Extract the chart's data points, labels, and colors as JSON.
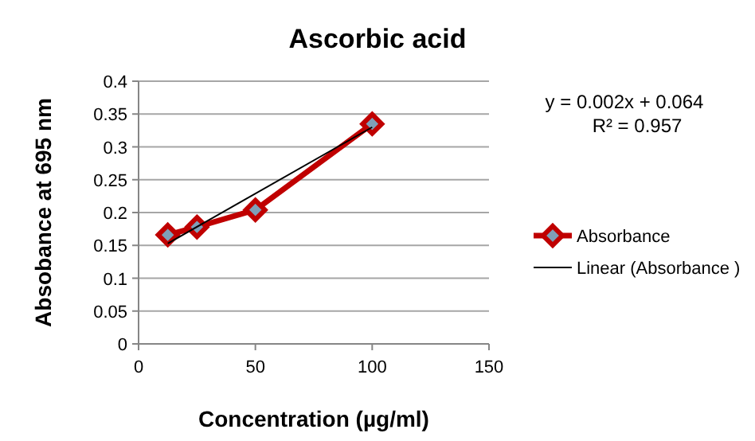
{
  "chart_data": {
    "type": "line",
    "title": "Ascorbic acid",
    "xlabel": "Concentration (µg/ml)",
    "ylabel": "Absobance at 695 nm",
    "xlim": [
      0,
      150
    ],
    "xticks": [
      0,
      50,
      100,
      150
    ],
    "ylim": [
      0,
      0.4
    ],
    "yticks": [
      0,
      0.05,
      0.1,
      0.15,
      0.2,
      0.25,
      0.3,
      0.35,
      0.4
    ],
    "grid": "y",
    "legend": "right",
    "annotations": [
      "y = 0.002x + 0.064",
      "R² = 0.957"
    ],
    "series": [
      {
        "name": "Absorbance",
        "color": "#c00000",
        "x": [
          12.5,
          25,
          50,
          100
        ],
        "values": [
          0.166,
          0.178,
          0.204,
          0.335
        ],
        "marker": "diamond",
        "line_style": "solid"
      },
      {
        "name": "Linear (Absorbance )",
        "color": "#000000",
        "x": [
          12.5,
          100
        ],
        "values": [
          0.153,
          0.33
        ],
        "marker": "none",
        "line_style": "solid"
      }
    ]
  }
}
